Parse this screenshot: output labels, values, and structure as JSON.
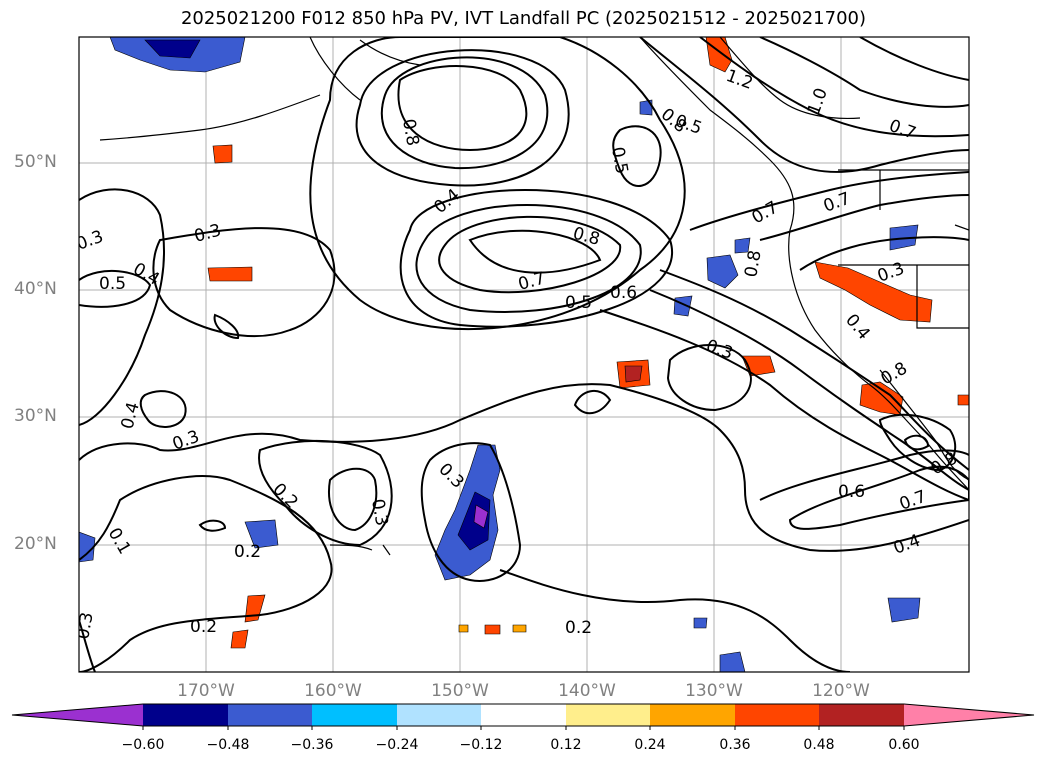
{
  "title": "2025021200 F012 850 hPa PV, IVT Landfall PC (2025021512 - 2025021700)",
  "axes": {
    "lon_ticks": [
      "170°W",
      "160°W",
      "150°W",
      "140°W",
      "130°W",
      "120°W"
    ],
    "lat_ticks": [
      "50°N",
      "40°N",
      "30°N",
      "20°N"
    ]
  },
  "contour_labels": [
    "1.2",
    "1.0",
    "0.7",
    "0.8",
    "0.5",
    "0.8",
    "0.5",
    "0.4",
    "0.3",
    "0.4",
    "0.5",
    "0.3",
    "0.8",
    "0.7",
    "0.5",
    "0.6",
    "0.7",
    "0.7",
    "0.8",
    "0.3",
    "0.4",
    "0.3",
    "0.8",
    "0.4",
    "0.3",
    "0.3",
    "0.2",
    "0.3",
    "0.6",
    "0.7",
    "0.8",
    "0.4",
    "0.1",
    "0.2",
    "0.3",
    "0.2",
    "0.2"
  ],
  "colorbar": {
    "colors": [
      "#9b30d0",
      "#00008b",
      "#3b5bd0",
      "#00bfff",
      "#b0e2ff",
      "#ffffff",
      "#ffee8c",
      "#ffa500",
      "#ff4500",
      "#b22222",
      "#ff80a8"
    ],
    "labels": [
      "−0.60",
      "−0.48",
      "−0.36",
      "−0.24",
      "−0.12",
      "0.12",
      "0.24",
      "0.36",
      "0.48",
      "0.60"
    ]
  }
}
